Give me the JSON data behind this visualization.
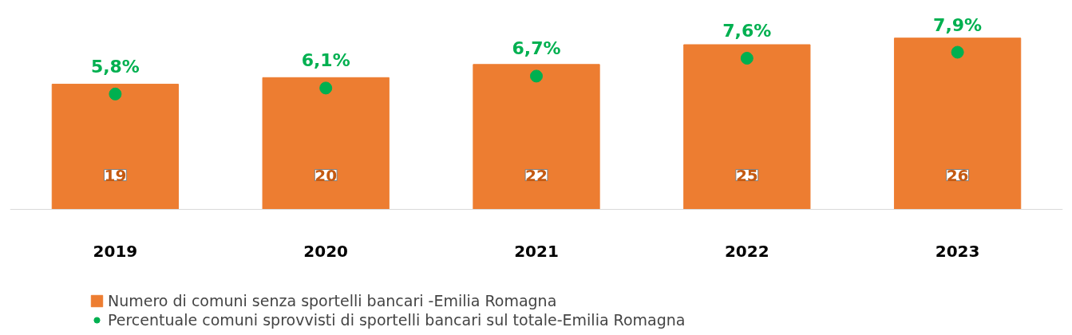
{
  "chart_data": {
    "type": "bar",
    "categories": [
      "2019",
      "2020",
      "2021",
      "2022",
      "2023"
    ],
    "series": [
      {
        "name": "Numero di comuni senza sportelli bancari -Emilia Romagna",
        "color": "#ed7d31",
        "values": [
          19,
          20,
          22,
          25,
          26
        ],
        "value_labels": [
          "19",
          "20",
          "22",
          "25",
          "26"
        ]
      },
      {
        "name": "Percentuale comuni sprovvisti di sportelli bancari sul totale-Emilia Romagna",
        "type": "scatter",
        "axis": "y2",
        "color": "#00b050",
        "values": [
          5.8,
          6.1,
          6.7,
          7.6,
          7.9
        ],
        "value_labels": [
          "5,8%",
          "6,1%",
          "6,7%",
          "7,6%",
          "7,9%"
        ]
      }
    ],
    "legend": "bottom",
    "marker": "circle"
  }
}
